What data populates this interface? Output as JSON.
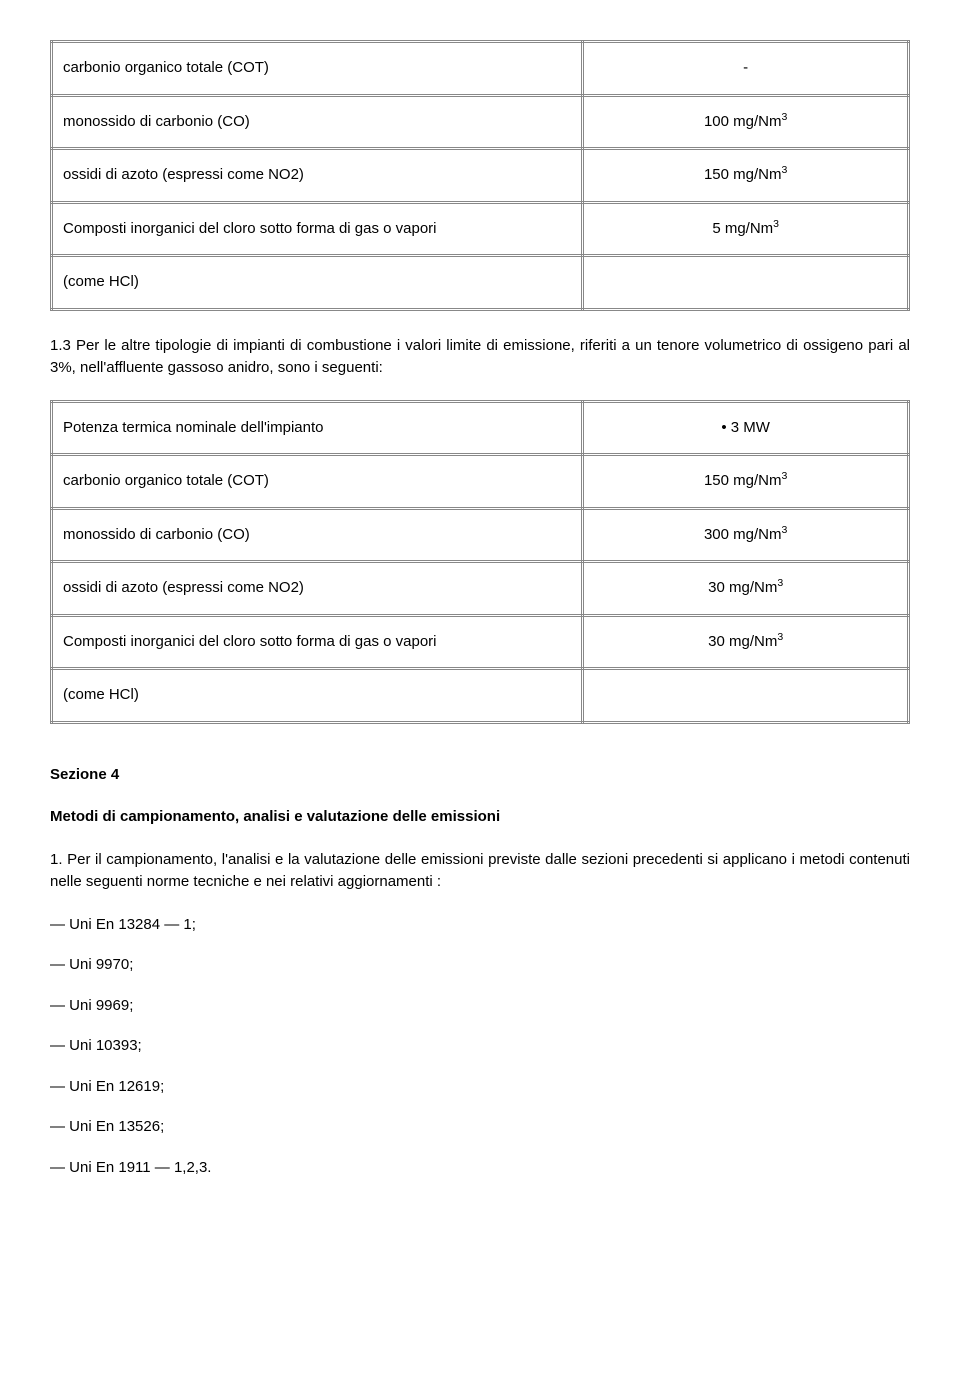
{
  "table1": {
    "rows": [
      {
        "label": "carbonio organico totale (COT)",
        "value": "-",
        "sup": false
      },
      {
        "label": "monossido di carbonio (CO)",
        "value": "100 mg/Nm",
        "sup": true
      },
      {
        "label": "ossidi di azoto (espressi come NO2)",
        "value": "150 mg/Nm",
        "sup": true
      },
      {
        "label": "Composti inorganici del cloro sotto forma di gas o vapori",
        "value": "5 mg/Nm",
        "sup": true
      },
      {
        "label": "(come HCl)",
        "value": "",
        "sup": false
      }
    ]
  },
  "paragraph1_3": "1.3 Per le altre tipologie di impianti di combustione i valori limite di emissione, riferiti a un tenore volumetrico di ossigeno pari al 3%, nell'affluente gassoso anidro, sono i seguenti:",
  "table2": {
    "rows": [
      {
        "label": "Potenza termica nominale dell'impianto",
        "value": "• 3 MW",
        "sup": false
      },
      {
        "label": "carbonio organico totale (COT)",
        "value": "150 mg/Nm",
        "sup": true
      },
      {
        "label": "monossido di carbonio (CO)",
        "value": "300 mg/Nm",
        "sup": true
      },
      {
        "label": "ossidi di azoto (espressi come NO2)",
        "value": "30 mg/Nm",
        "sup": true
      },
      {
        "label": "Composti inorganici del cloro sotto forma di gas o vapori",
        "value": "30 mg/Nm",
        "sup": true
      },
      {
        "label": "(come HCl)",
        "value": "",
        "sup": false
      }
    ]
  },
  "section4_title": "Sezione 4",
  "section4_subtitle": "Metodi di campionamento, analisi e valutazione delle emissioni",
  "section4_para1": "1. Per il campionamento, l'analisi e la valutazione delle emissioni previste dalle sezioni precedenti si applicano i metodi contenuti nelle seguenti norme tecniche e nei relativi aggiornamenti :",
  "norms": [
    "— Uni En 13284 — 1;",
    "— Uni 9970;",
    "— Uni 9969;",
    "— Uni 10393;",
    "— Uni En 12619;",
    "— Uni En 13526;",
    "— Uni En 1911 — 1,2,3."
  ]
}
